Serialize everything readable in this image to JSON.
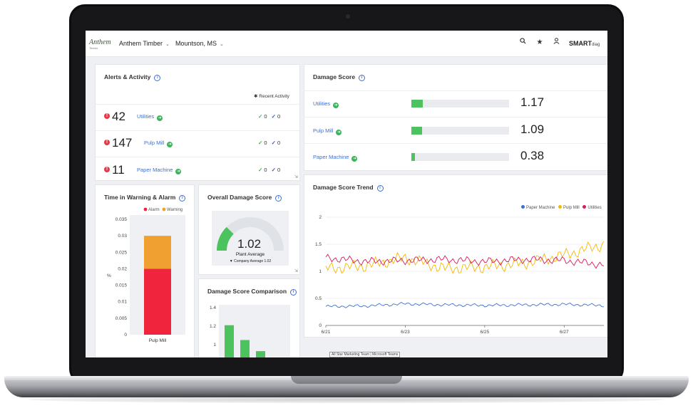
{
  "header": {
    "logo": "Anthem",
    "logo_sub": "Timber",
    "company": "Anthem Timber",
    "site": "Mountson, MS",
    "brand": "SMART",
    "brand_suffix": "diag"
  },
  "alerts": {
    "title": "Alerts & Activity",
    "recent_label": "Recent Activity",
    "rows": [
      {
        "count": "42",
        "area": "Utilities",
        "ack1": "0",
        "ack2": "0"
      },
      {
        "count": "147",
        "area": "Pulp Mill",
        "ack1": "0",
        "ack2": "0"
      },
      {
        "count": "11",
        "area": "Paper Machine",
        "ack1": "0",
        "ack2": "0"
      }
    ]
  },
  "damage_score": {
    "title": "Damage Score",
    "rows": [
      {
        "area": "Utilities",
        "value": "1.17",
        "level": 0.12
      },
      {
        "area": "Pulp Mill",
        "value": "1.09",
        "level": 0.11
      },
      {
        "area": "Paper Machine",
        "value": "0.38",
        "level": 0.035
      }
    ]
  },
  "time_warning": {
    "title": "Time in Warning & Alarm",
    "legend": {
      "alarm": "Alarm",
      "warning": "Warning"
    },
    "ylabel": "%",
    "category": "Pulp Mill"
  },
  "overall": {
    "title": "Overall Damage Score",
    "value": "1.02",
    "label": "Plant Average",
    "company": "Company Average 1.02",
    "gauge_level": 0.25
  },
  "comparison": {
    "title": "Damage Score Comparison"
  },
  "trend": {
    "title": "Damage Score Trend"
  },
  "tooltip": "All Star Marketing Team | Microsoft Teams",
  "colors": {
    "alarm": "#f0243d",
    "warning": "#f0a030",
    "paper_machine": "#3b6fd4",
    "pulp_mill": "#f5b800",
    "utilities": "#d81b5a",
    "bar_green": "#4cc35e",
    "link_blue": "#3b6fd4"
  },
  "chart_data": [
    {
      "type": "bar",
      "chart": "Time in Warning & Alarm",
      "categories": [
        "Pulp Mill"
      ],
      "series": [
        {
          "name": "Alarm",
          "values": [
            0.02
          ]
        },
        {
          "name": "Warning",
          "values": [
            0.01
          ]
        }
      ],
      "stacked": true,
      "ylabel": "%",
      "ylim": [
        0,
        0.035
      ],
      "yticks": [
        "0.035",
        "0.03",
        "0.025",
        "0.02",
        "0.015",
        "0.01",
        "0.005",
        "0"
      ],
      "legend": "top-right"
    },
    {
      "type": "bar",
      "chart": "Damage Score Comparison",
      "values": [
        1.21,
        1.05,
        0.93
      ],
      "ylim": [
        0.8,
        1.4
      ],
      "yticks": [
        "1.4",
        "1.2",
        "1"
      ]
    },
    {
      "type": "line",
      "chart": "Damage Score Trend",
      "x": [
        "6/21",
        "6/22",
        "6/23",
        "6/24",
        "6/25",
        "6/26",
        "6/27",
        "6/28"
      ],
      "xticks": [
        "6/21",
        "6/23",
        "6/25",
        "6/27"
      ],
      "yticks": [
        "0",
        "0.5",
        "1",
        "1.5",
        "2"
      ],
      "ylim": [
        0,
        2
      ],
      "legend": "top-right",
      "series": [
        {
          "name": "Paper Machine",
          "values": [
            0.35,
            0.36,
            0.4,
            0.38,
            0.37,
            0.38,
            0.39,
            0.37
          ]
        },
        {
          "name": "Pulp Mill",
          "values": [
            1.05,
            1.1,
            1.25,
            1.05,
            1.08,
            1.15,
            1.3,
            1.5
          ]
        },
        {
          "name": "Utilities",
          "values": [
            1.25,
            1.18,
            1.2,
            1.22,
            1.18,
            1.22,
            1.2,
            1.12
          ]
        }
      ]
    }
  ]
}
